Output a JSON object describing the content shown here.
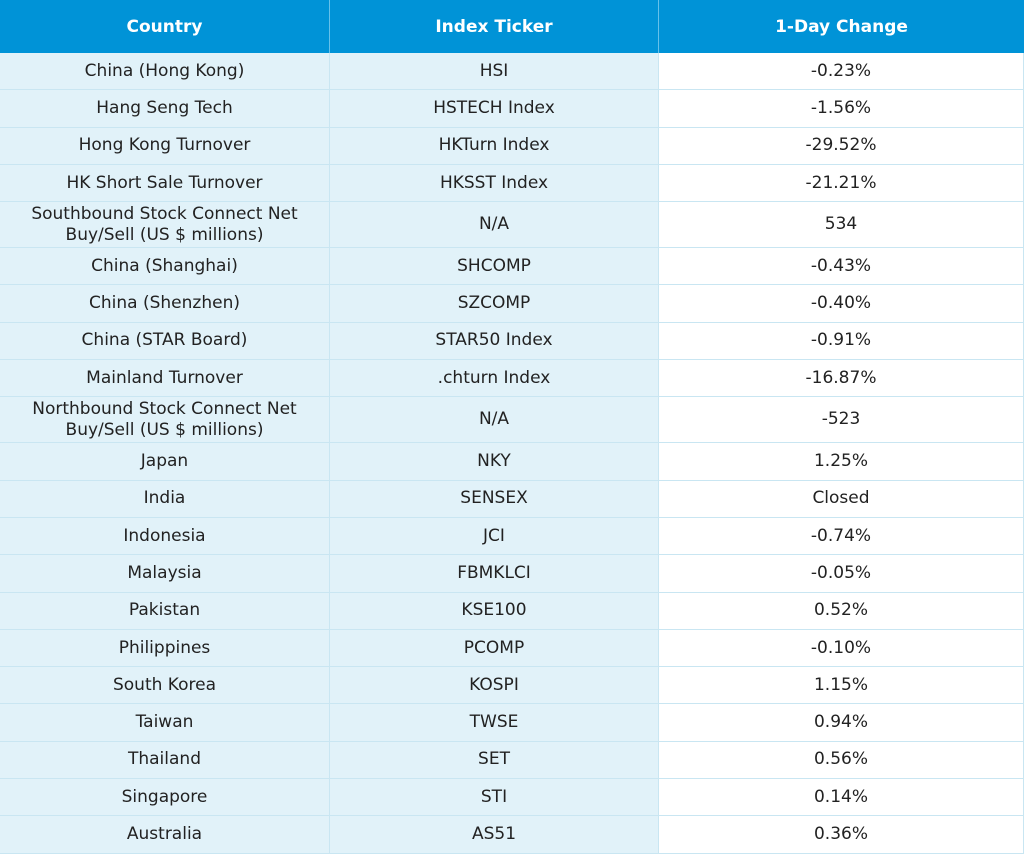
{
  "table": {
    "headers": [
      "Country",
      "Index Ticker",
      "1-Day Change"
    ],
    "rows": [
      {
        "country": "China (Hong Kong)",
        "ticker": "HSI",
        "change": "-0.23%"
      },
      {
        "country": "Hang Seng Tech",
        "ticker": "HSTECH Index",
        "change": "-1.56%"
      },
      {
        "country": "Hong Kong Turnover",
        "ticker": "HKTurn Index",
        "change": "-29.52%"
      },
      {
        "country": "HK Short Sale Turnover",
        "ticker": "HKSST Index",
        "change": "-21.21%"
      },
      {
        "country": "Southbound Stock Connect Net Buy/Sell (US $ millions)",
        "ticker": "N/A",
        "change": "534"
      },
      {
        "country": "China (Shanghai)",
        "ticker": "SHCOMP",
        "change": "-0.43%"
      },
      {
        "country": "China (Shenzhen)",
        "ticker": "SZCOMP",
        "change": "-0.40%"
      },
      {
        "country": "China (STAR Board)",
        "ticker": "STAR50 Index",
        "change": "-0.91%"
      },
      {
        "country": "Mainland Turnover",
        "ticker": ".chturn Index",
        "change": "-16.87%"
      },
      {
        "country": "Northbound Stock Connect Net Buy/Sell (US $ millions)",
        "ticker": "N/A",
        "change": "-523"
      },
      {
        "country": "Japan",
        "ticker": "NKY",
        "change": "1.25%"
      },
      {
        "country": "India",
        "ticker": "SENSEX",
        "change": "Closed"
      },
      {
        "country": "Indonesia",
        "ticker": "JCI",
        "change": "-0.74%"
      },
      {
        "country": "Malaysia",
        "ticker": "FBMKLCI",
        "change": "-0.05%"
      },
      {
        "country": "Pakistan",
        "ticker": "KSE100",
        "change": "0.52%"
      },
      {
        "country": "Philippines",
        "ticker": "PCOMP",
        "change": "-0.10%"
      },
      {
        "country": "South Korea",
        "ticker": "KOSPI",
        "change": "1.15%"
      },
      {
        "country": "Taiwan",
        "ticker": "TWSE",
        "change": "0.94%"
      },
      {
        "country": "Thailand",
        "ticker": "SET",
        "change": "0.56%"
      },
      {
        "country": "Singapore",
        "ticker": "STI",
        "change": "0.14%"
      },
      {
        "country": "Australia",
        "ticker": "AS51",
        "change": "0.36%"
      }
    ]
  },
  "colors": {
    "header_bg": "#0093d7",
    "shade_bg": "#e1f2f9",
    "grid": "#c9e6f2"
  }
}
